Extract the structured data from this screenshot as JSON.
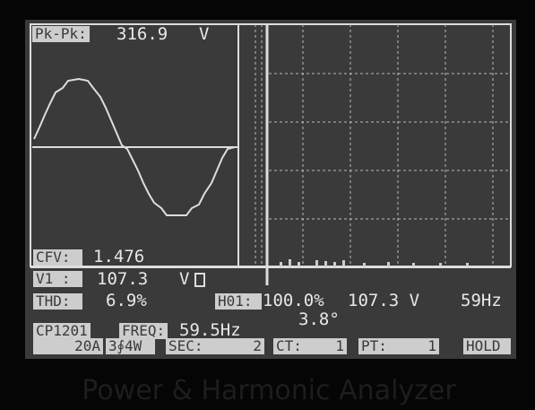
{
  "header": {
    "pk_pk_label": "Pk-Pk:",
    "pk_pk_value": "316.9",
    "pk_pk_unit": "V"
  },
  "readings": {
    "cfv_label": "CFV:",
    "cfv_value": "1.476",
    "v1_label": "V1 :",
    "v1_value": "107.3",
    "v1_unit": "V",
    "thd_label": "THD:",
    "thd_value": "6.9%",
    "h01_label": "H01:",
    "h01_percent": "100.0%",
    "h01_voltage": "107.3 V",
    "h01_freq": "59Hz",
    "h01_phase": "3.8°"
  },
  "status": {
    "model": "CP1201",
    "freq_label": "FREQ:",
    "freq_value": "59.5Hz",
    "range": "20A",
    "wiring": "3∮4W",
    "sec_label": "SEC:",
    "sec_value": "2",
    "ct_label": "CT:",
    "ct_value": "1",
    "pt_label": "PT:",
    "pt_value": "1",
    "hold": "HOLD"
  },
  "caption": "Power & Harmonic Analyzer"
}
